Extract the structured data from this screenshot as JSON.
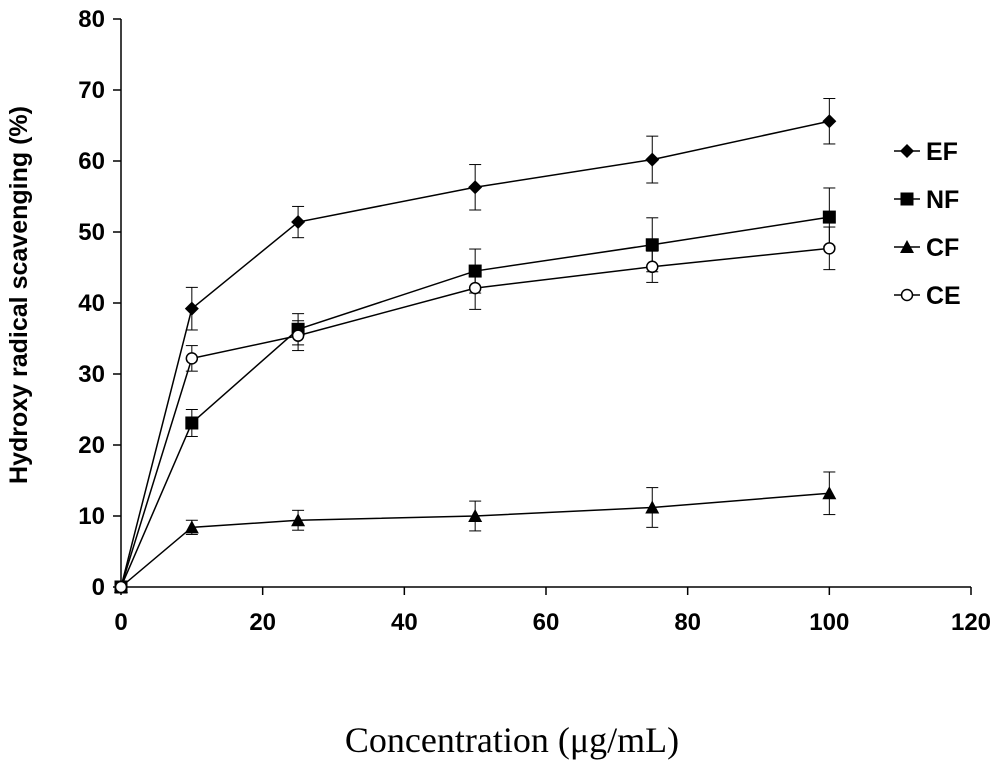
{
  "chart_data": {
    "type": "line",
    "xlabel": "Concentration (μg/mL)",
    "ylabel": "Hydroxy radical scavenging (%)",
    "xlim": [
      0,
      120
    ],
    "ylim": [
      0,
      80
    ],
    "x_ticks": [
      0,
      20,
      40,
      60,
      80,
      100,
      120
    ],
    "y_ticks": [
      0,
      10,
      20,
      30,
      40,
      50,
      60,
      70,
      80
    ],
    "grid": false,
    "legend_position": "right",
    "x": [
      0,
      10,
      25,
      50,
      75,
      100
    ],
    "series": [
      {
        "name": "EF",
        "marker": "diamond",
        "values": [
          0,
          39.2,
          51.4,
          56.3,
          60.2,
          65.6
        ],
        "errors": [
          0,
          3.0,
          2.2,
          3.2,
          3.3,
          3.2
        ]
      },
      {
        "name": "NF",
        "marker": "square",
        "values": [
          0,
          23.1,
          36.3,
          44.5,
          48.2,
          52.1
        ],
        "errors": [
          0,
          1.9,
          2.2,
          3.1,
          3.8,
          4.1
        ]
      },
      {
        "name": "CF",
        "marker": "triangle",
        "values": [
          0,
          8.4,
          9.4,
          10.0,
          11.2,
          13.2
        ],
        "errors": [
          0,
          1.0,
          1.4,
          2.1,
          2.8,
          3.0
        ]
      },
      {
        "name": "CE",
        "marker": "circle-open",
        "values": [
          0,
          32.2,
          35.4,
          42.1,
          45.1,
          47.7
        ],
        "errors": [
          0,
          1.8,
          2.1,
          3.0,
          2.2,
          3.0
        ]
      }
    ]
  }
}
